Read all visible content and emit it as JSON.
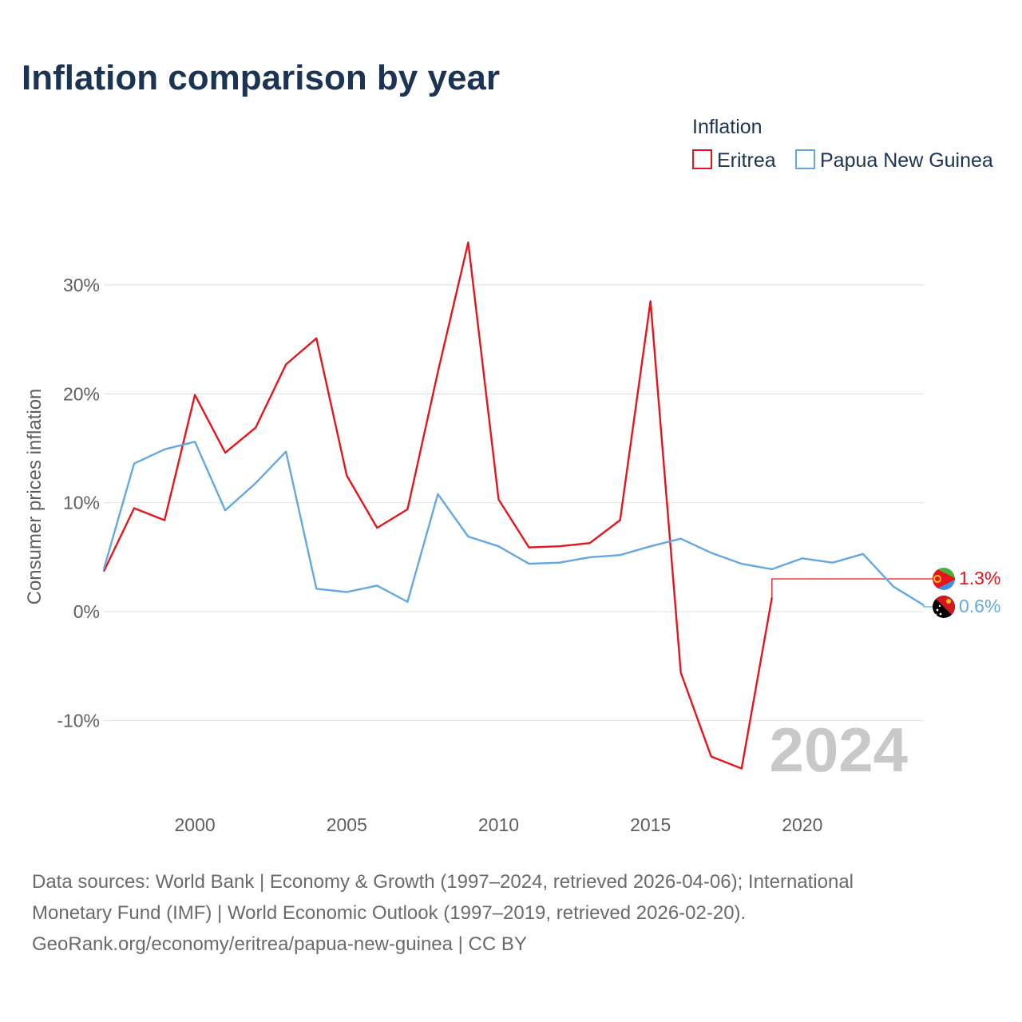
{
  "title": "Inflation comparison by year",
  "legend": {
    "title": "Inflation",
    "position": "top-right"
  },
  "watermark_year": "2024",
  "footer": {
    "line1": "Data sources: World Bank | Economy & Growth (1997–2024, retrieved 2026-04-06); International",
    "line2": "Monetary Fund (IMF) | World Economic Outlook (1997–2019, retrieved 2026-02-20).",
    "line3": "GeoRank.org/economy/eritrea/papua-new-guinea | CC BY"
  },
  "chart_data": {
    "type": "line",
    "title": "Inflation comparison by year",
    "xlabel": "",
    "ylabel": "Consumer prices inflation",
    "xlim": [
      1997,
      2024
    ],
    "ylim": [
      -17,
      36
    ],
    "x_ticks": [
      2000,
      2005,
      2010,
      2015,
      2020
    ],
    "y_ticks": [
      30,
      20,
      10,
      0,
      -10
    ],
    "y_tick_labels": [
      "30%",
      "20%",
      "10%",
      "0%",
      "-10%"
    ],
    "grid": true,
    "series": [
      {
        "name": "Eritrea",
        "color": "#e8141c",
        "end_label": "1.3%",
        "end_value": 1.3,
        "flag_icon": "eritrea-flag-icon",
        "x": [
          1997,
          1998,
          1999,
          2000,
          2001,
          2002,
          2003,
          2004,
          2005,
          2006,
          2007,
          2008,
          2009,
          2010,
          2011,
          2012,
          2013,
          2014,
          2015,
          2016,
          2017,
          2018,
          2019
        ],
        "values": [
          3.7,
          9.5,
          8.4,
          19.9,
          14.6,
          16.9,
          22.7,
          25.1,
          12.5,
          7.7,
          9.4,
          22.0,
          33.9,
          10.3,
          5.9,
          6.0,
          6.3,
          8.4,
          28.5,
          -5.6,
          -13.3,
          -14.4,
          1.3
        ]
      },
      {
        "name": "Papua New Guinea",
        "color": "#63a8e2",
        "end_label": "0.6%",
        "end_value": 0.6,
        "flag_icon": "papua-new-guinea-flag-icon",
        "x": [
          1997,
          1998,
          1999,
          2000,
          2001,
          2002,
          2003,
          2004,
          2005,
          2006,
          2007,
          2008,
          2009,
          2010,
          2011,
          2012,
          2013,
          2014,
          2015,
          2016,
          2017,
          2018,
          2019,
          2020,
          2021,
          2022,
          2023,
          2024
        ],
        "values": [
          3.9,
          13.6,
          14.9,
          15.6,
          9.3,
          11.8,
          14.7,
          2.1,
          1.8,
          2.4,
          0.9,
          10.8,
          6.9,
          6.0,
          4.4,
          4.5,
          5.0,
          5.2,
          6.0,
          6.7,
          5.4,
          4.4,
          3.9,
          4.9,
          4.5,
          5.3,
          2.3,
          0.6
        ]
      }
    ]
  }
}
